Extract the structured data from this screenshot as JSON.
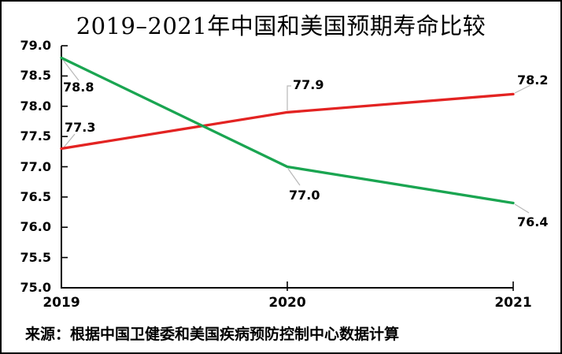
{
  "title": "2019–2021年中国和美国预期寿命比较",
  "source_note": "来源：根据中国卫健委和美国疾病预防控制中心数据计算",
  "colors": {
    "red_series": "#e32322",
    "green_series": "#1aa551",
    "axis": "#000000",
    "leader": "#b8b8b8",
    "text": "#000000",
    "background": "#ffffff",
    "frame_border": "#000000"
  },
  "chart_data": {
    "type": "line",
    "title": "2019–2021年中国和美国预期寿命比较",
    "x": [
      "2019",
      "2020",
      "2021"
    ],
    "series": [
      {
        "id": "red-line",
        "color_key": "red_series",
        "values": [
          77.3,
          77.9,
          78.2
        ],
        "point_labels": [
          "77.3",
          "77.9",
          "78.2"
        ]
      },
      {
        "id": "green-line",
        "color_key": "green_series",
        "values": [
          78.8,
          77.0,
          76.4
        ],
        "point_labels": [
          "78.8",
          "77.0",
          "76.4"
        ]
      }
    ],
    "ylim": [
      75.0,
      79.0
    ],
    "ytick_step": 0.5,
    "ytick_labels": [
      "79.0",
      "78.5",
      "78.0",
      "77.5",
      "77.0",
      "76.5",
      "76.0",
      "75.5",
      "75.0"
    ],
    "xtick_labels": [
      "2019",
      "2020",
      "2021"
    ],
    "grid": false,
    "legend": "none",
    "data_labels_shown": true
  }
}
